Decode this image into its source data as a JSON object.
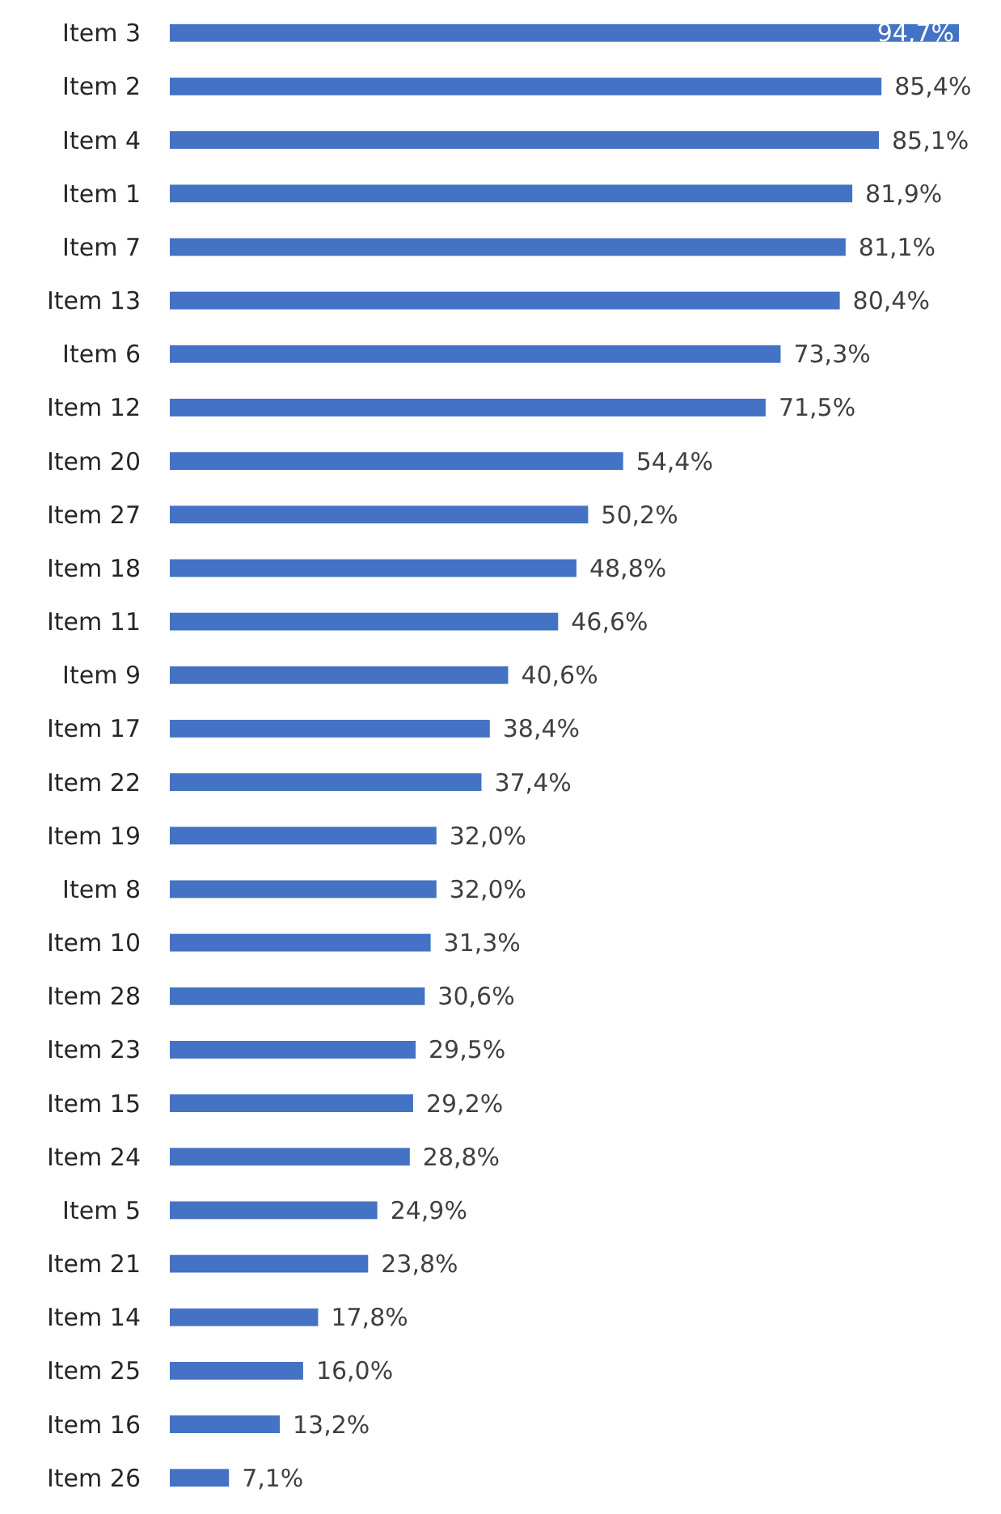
{
  "chart_data": {
    "type": "bar",
    "orientation": "horizontal",
    "color": "#4472c4",
    "categories": [
      "Item 3",
      "Item 2",
      "Item 4",
      "Item 1",
      "Item 7",
      "Item 13",
      "Item 6",
      "Item 12",
      "Item 20",
      "Item 27",
      "Item 18",
      "Item 11",
      "Item 9",
      "Item 17",
      "Item 22",
      "Item 19",
      "Item 8",
      "Item 10",
      "Item 28",
      "Item 23",
      "Item 15",
      "Item 24",
      "Item 5",
      "Item 21",
      "Item 14",
      "Item 25",
      "Item 16",
      "Item 26"
    ],
    "values": [
      94.7,
      85.4,
      85.1,
      81.9,
      81.1,
      80.4,
      73.3,
      71.5,
      54.4,
      50.2,
      48.8,
      46.6,
      40.6,
      38.4,
      37.4,
      32.0,
      32.0,
      31.3,
      30.6,
      29.5,
      29.2,
      28.8,
      24.9,
      23.8,
      17.8,
      16.0,
      13.2,
      7.1
    ],
    "value_labels": [
      "94,7%",
      "85,4%",
      "85,1%",
      "81,9%",
      "81,1%",
      "80,4%",
      "73,3%",
      "71,5%",
      "54,4%",
      "50,2%",
      "48,8%",
      "46,6%",
      "40,6%",
      "38,4%",
      "37,4%",
      "32,0%",
      "32,0%",
      "31,3%",
      "30,6%",
      "29,5%",
      "29,2%",
      "28,8%",
      "24,9%",
      "23,8%",
      "17,8%",
      "16,0%",
      "13,2%",
      "7,1%"
    ]
  }
}
